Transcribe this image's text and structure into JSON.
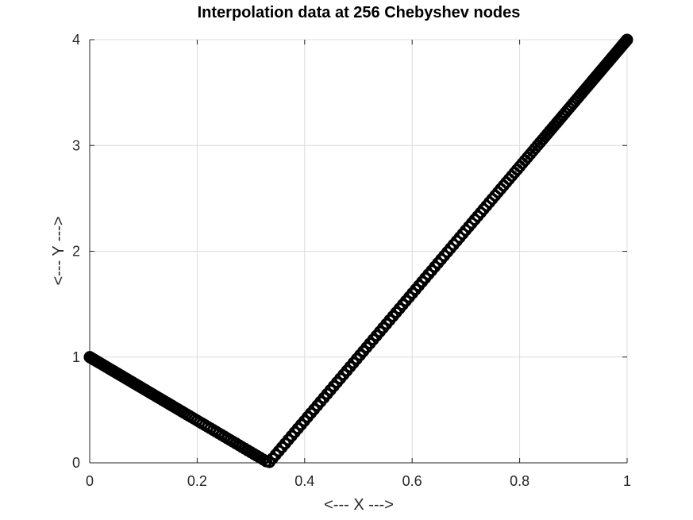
{
  "chart_data": {
    "type": "scatter",
    "title": "Interpolation data at 256 Chebyshev nodes",
    "xlabel": "<--- X --->",
    "ylabel": "<--- Y --->",
    "xlim": [
      0,
      1
    ],
    "ylim": [
      0,
      4
    ],
    "x_ticks": [
      "0",
      "0.2",
      "0.4",
      "0.6",
      "0.8",
      "1"
    ],
    "y_ticks": [
      "0",
      "1",
      "2",
      "3",
      "4"
    ],
    "grid": true,
    "marker_color": "#000000",
    "node_count": 256,
    "function": "piecewise linear V shape: y = 1 - 3x for x < 1/3, y = 6x - 2 for x >= 1/3",
    "series": [
      {
        "x": [
          0,
          0.3333,
          1
        ],
        "y": [
          1,
          0,
          4
        ]
      }
    ]
  }
}
